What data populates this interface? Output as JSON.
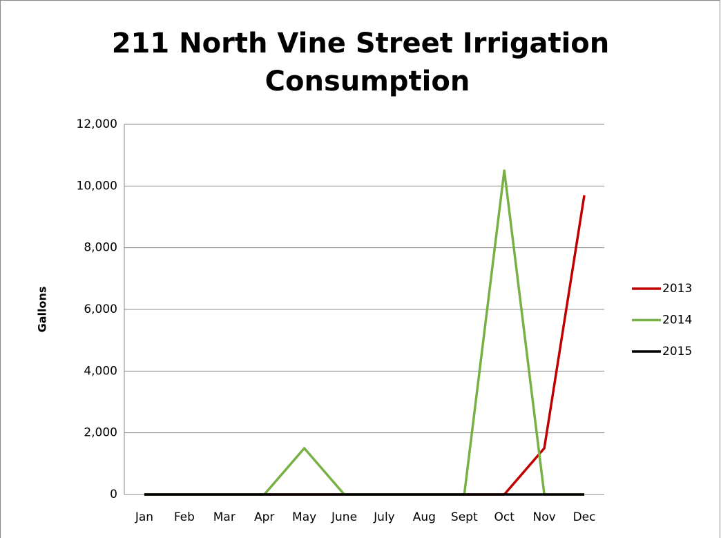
{
  "chart_data": {
    "type": "line",
    "title": [
      "211 North Vine Street Irrigation",
      "Consumption"
    ],
    "y_label": "Gallons",
    "categories": [
      "Jan",
      "Feb",
      "Mar",
      "Apr",
      "May",
      "June",
      "July",
      "Aug",
      "Sept",
      "Oct",
      "Nov",
      "Dec"
    ],
    "series": [
      {
        "name": "2013",
        "color": "#c00000",
        "values": [
          0,
          0,
          0,
          0,
          0,
          0,
          0,
          0,
          0,
          0,
          1500,
          9700
        ]
      },
      {
        "name": "2014",
        "color": "#77b144",
        "values": [
          0,
          0,
          0,
          0,
          1500,
          0,
          0,
          0,
          0,
          10500,
          0,
          0
        ]
      },
      {
        "name": "2015",
        "color": "#000000",
        "values": [
          0,
          0,
          0,
          0,
          0,
          0,
          0,
          0,
          0,
          0,
          0,
          0
        ]
      }
    ],
    "ylim": [
      0,
      12000
    ],
    "yticks": [
      0,
      {
        "value": 2000,
        "label": "2,000"
      },
      {
        "value": 4000,
        "label": "4,000"
      },
      {
        "value": 6000,
        "label": "6,000"
      },
      {
        "value": 8000,
        "label": "8,000"
      },
      {
        "value": 10000,
        "label": "10,000"
      },
      {
        "value": 12000,
        "label": "12,000"
      }
    ],
    "grid": true,
    "legend": "right"
  }
}
